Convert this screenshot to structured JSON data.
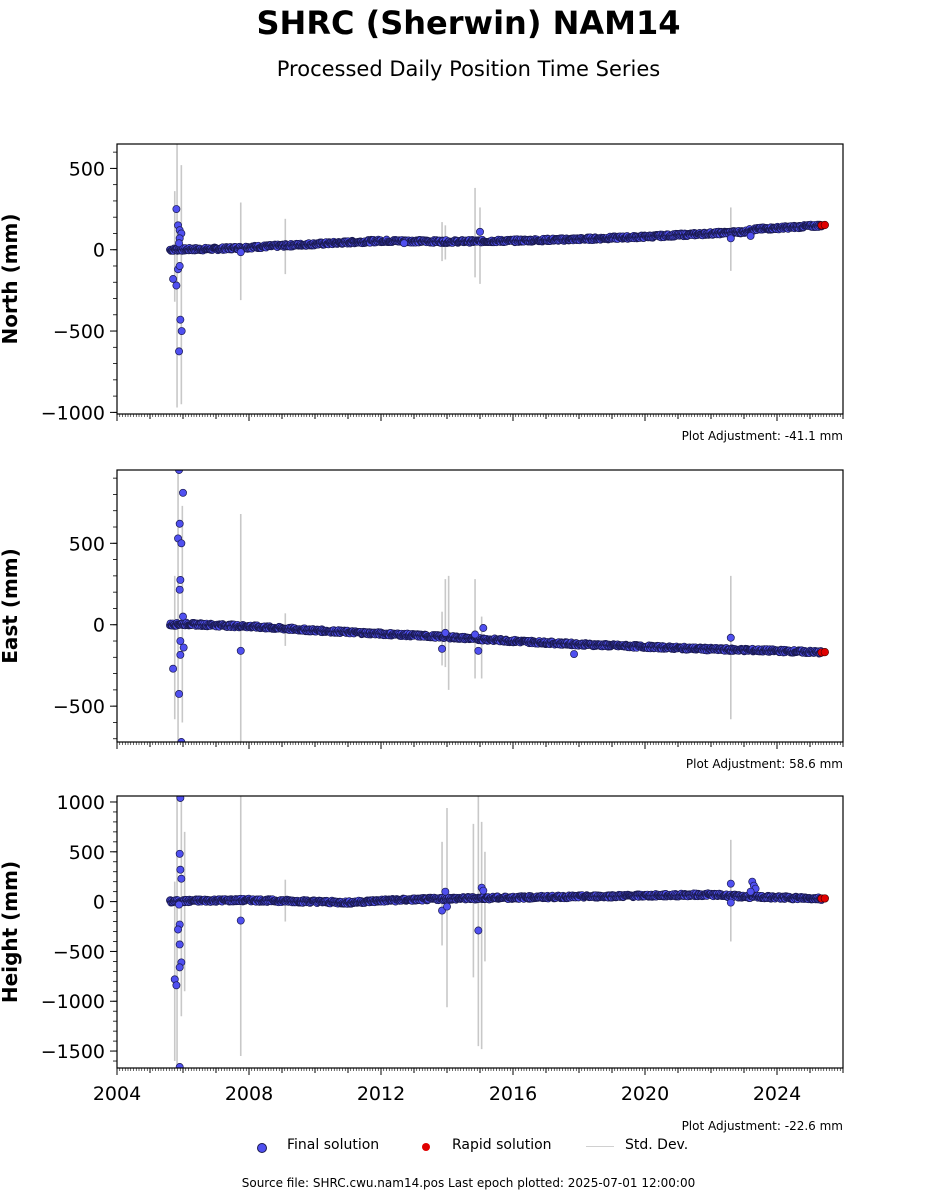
{
  "page": {
    "title": "SHRC (Sherwin) NAM14",
    "subtitle": "Processed Daily Position Time Series",
    "footer": "Source file: SHRC.cwu.nam14.pos  Last epoch plotted: 2025-07-01 12:00:00"
  },
  "legend": {
    "final": "Final solution",
    "rapid": "Rapid solution",
    "std": "Std. Dev."
  },
  "colors": {
    "final": "#5050f0",
    "final_edge": "#1a1a50",
    "rapid": "#e00000",
    "std": "#c8c8c8"
  },
  "chart_data": [
    {
      "type": "scatter",
      "ylabel": "North (mm)",
      "adjustment": "Plot Adjustment: -41.1 mm",
      "xlim": [
        2004.0,
        2026.0
      ],
      "ylim": [
        -1010,
        650
      ],
      "yticks": [
        500,
        0,
        -500,
        -1000
      ],
      "ytick_labels": [
        "500",
        "0",
        "−500",
        "−1000"
      ],
      "xticks": [
        2004,
        2008,
        2012,
        2016,
        2020,
        2024
      ],
      "xtick_labels": [],
      "trend": [
        [
          2005.6,
          0
        ],
        [
          2007.0,
          5
        ],
        [
          2010.0,
          35
        ],
        [
          2012.0,
          55
        ],
        [
          2014.0,
          50
        ],
        [
          2016.0,
          55
        ],
        [
          2018.0,
          65
        ],
        [
          2020.0,
          80
        ],
        [
          2022.0,
          100
        ],
        [
          2023.0,
          110
        ],
        [
          2023.3,
          125
        ],
        [
          2025.4,
          150
        ]
      ],
      "outliers": [
        [
          2005.8,
          250
        ],
        [
          2005.85,
          150
        ],
        [
          2005.9,
          120
        ],
        [
          2005.95,
          100
        ],
        [
          2005.9,
          70
        ],
        [
          2005.88,
          40
        ],
        [
          2005.85,
          -120
        ],
        [
          2005.9,
          -100
        ],
        [
          2005.7,
          -180
        ],
        [
          2005.8,
          -220
        ],
        [
          2005.92,
          -430
        ],
        [
          2005.96,
          -500
        ],
        [
          2005.88,
          -625
        ],
        [
          2007.75,
          -15
        ],
        [
          2012.7,
          40
        ],
        [
          2015.0,
          110
        ],
        [
          2022.6,
          70
        ],
        [
          2023.2,
          85
        ]
      ],
      "std_bars": [
        [
          2005.82,
          -970,
          680
        ],
        [
          2005.95,
          -950,
          520
        ],
        [
          2005.75,
          -320,
          360
        ],
        [
          2007.75,
          -310,
          290
        ],
        [
          2009.1,
          -150,
          190
        ],
        [
          2013.85,
          -70,
          170
        ],
        [
          2013.95,
          -60,
          150
        ],
        [
          2014.85,
          -170,
          380
        ],
        [
          2015.0,
          -210,
          260
        ],
        [
          2022.6,
          -130,
          260
        ]
      ],
      "rapid": [
        [
          2025.35,
          150
        ],
        [
          2025.45,
          152
        ]
      ]
    },
    {
      "type": "scatter",
      "ylabel": "East (mm)",
      "adjustment": "Plot Adjustment: 58.6 mm",
      "xlim": [
        2004.0,
        2026.0
      ],
      "ylim": [
        -720,
        950
      ],
      "yticks": [
        500,
        0,
        -500
      ],
      "ytick_labels": [
        "500",
        "0",
        "−500"
      ],
      "xticks": [
        2004,
        2008,
        2012,
        2016,
        2020,
        2024
      ],
      "xtick_labels": [],
      "trend": [
        [
          2005.6,
          0
        ],
        [
          2006.0,
          5
        ],
        [
          2008.0,
          -10
        ],
        [
          2010.0,
          -35
        ],
        [
          2012.0,
          -55
        ],
        [
          2014.0,
          -75
        ],
        [
          2016.0,
          -100
        ],
        [
          2018.0,
          -120
        ],
        [
          2020.0,
          -135
        ],
        [
          2022.0,
          -150
        ],
        [
          2024.0,
          -160
        ],
        [
          2025.4,
          -170
        ]
      ],
      "outliers": [
        [
          2005.88,
          950
        ],
        [
          2006.0,
          810
        ],
        [
          2005.9,
          620
        ],
        [
          2005.85,
          530
        ],
        [
          2005.95,
          500
        ],
        [
          2005.92,
          275
        ],
        [
          2005.9,
          215
        ],
        [
          2006.0,
          50
        ],
        [
          2005.92,
          -100
        ],
        [
          2006.02,
          -140
        ],
        [
          2005.92,
          -185
        ],
        [
          2005.7,
          -270
        ],
        [
          2005.88,
          -425
        ],
        [
          2005.95,
          -720
        ],
        [
          2007.75,
          -160
        ],
        [
          2013.85,
          -148
        ],
        [
          2013.95,
          -50
        ],
        [
          2014.85,
          -60
        ],
        [
          2014.95,
          -160
        ],
        [
          2015.1,
          -20
        ],
        [
          2017.85,
          -180
        ],
        [
          2022.6,
          -80
        ]
      ],
      "std_bars": [
        [
          2005.85,
          -720,
          950
        ],
        [
          2005.98,
          -600,
          730
        ],
        [
          2005.75,
          -580,
          300
        ],
        [
          2007.75,
          -720,
          680
        ],
        [
          2009.1,
          -130,
          70
        ],
        [
          2013.85,
          -250,
          80
        ],
        [
          2013.95,
          -260,
          280
        ],
        [
          2014.05,
          -400,
          300
        ],
        [
          2014.85,
          -330,
          280
        ],
        [
          2015.05,
          -330,
          50
        ],
        [
          2022.6,
          -580,
          300
        ]
      ],
      "rapid": [
        [
          2025.35,
          -170
        ],
        [
          2025.45,
          -168
        ]
      ]
    },
    {
      "type": "scatter",
      "ylabel": "Height (mm)",
      "adjustment": "Plot Adjustment: -22.6 mm",
      "xlim": [
        2004.0,
        2026.0
      ],
      "ylim": [
        -1670,
        1060
      ],
      "yticks": [
        1000,
        500,
        0,
        -500,
        -1000,
        -1500
      ],
      "ytick_labels": [
        "1000",
        "500",
        "0",
        "−500",
        "−1000",
        "−1500"
      ],
      "xticks": [
        2004,
        2008,
        2012,
        2016,
        2020,
        2024
      ],
      "xtick_labels": [
        "2004",
        "2008",
        "2012",
        "2016",
        "2020",
        "2024"
      ],
      "trend": [
        [
          2005.6,
          0
        ],
        [
          2006.5,
          10
        ],
        [
          2008.0,
          15
        ],
        [
          2010.0,
          0
        ],
        [
          2011.0,
          -10
        ],
        [
          2012.0,
          10
        ],
        [
          2014.0,
          30
        ],
        [
          2016.0,
          40
        ],
        [
          2018.0,
          50
        ],
        [
          2020.0,
          60
        ],
        [
          2022.0,
          70
        ],
        [
          2023.0,
          50
        ],
        [
          2025.4,
          30
        ]
      ],
      "outliers": [
        [
          2005.92,
          1040
        ],
        [
          2005.9,
          480
        ],
        [
          2005.92,
          320
        ],
        [
          2005.95,
          230
        ],
        [
          2005.88,
          -30
        ],
        [
          2005.9,
          -230
        ],
        [
          2005.85,
          -280
        ],
        [
          2005.9,
          -430
        ],
        [
          2005.95,
          -610
        ],
        [
          2005.9,
          -660
        ],
        [
          2005.75,
          -780
        ],
        [
          2005.8,
          -840
        ],
        [
          2005.9,
          -1660
        ],
        [
          2007.75,
          -190
        ],
        [
          2013.85,
          -90
        ],
        [
          2013.95,
          100
        ],
        [
          2014.0,
          -50
        ],
        [
          2014.95,
          -290
        ],
        [
          2015.05,
          140
        ],
        [
          2015.1,
          110
        ],
        [
          2022.6,
          180
        ],
        [
          2022.6,
          -10
        ],
        [
          2023.25,
          200
        ],
        [
          2023.3,
          160
        ],
        [
          2023.35,
          130
        ],
        [
          2023.2,
          100
        ]
      ],
      "std_bars": [
        [
          2005.82,
          -1660,
          1060
        ],
        [
          2005.95,
          -1150,
          1060
        ],
        [
          2005.75,
          -1600,
          200
        ],
        [
          2006.05,
          -900,
          700
        ],
        [
          2007.75,
          -1550,
          1060
        ],
        [
          2009.1,
          -200,
          220
        ],
        [
          2013.85,
          -440,
          600
        ],
        [
          2014.0,
          -1060,
          940
        ],
        [
          2014.8,
          -760,
          780
        ],
        [
          2014.95,
          -1450,
          1060
        ],
        [
          2015.05,
          -1480,
          800
        ],
        [
          2015.15,
          -600,
          500
        ],
        [
          2022.6,
          -400,
          620
        ]
      ],
      "rapid": [
        [
          2025.35,
          30
        ],
        [
          2025.45,
          32
        ]
      ]
    }
  ]
}
